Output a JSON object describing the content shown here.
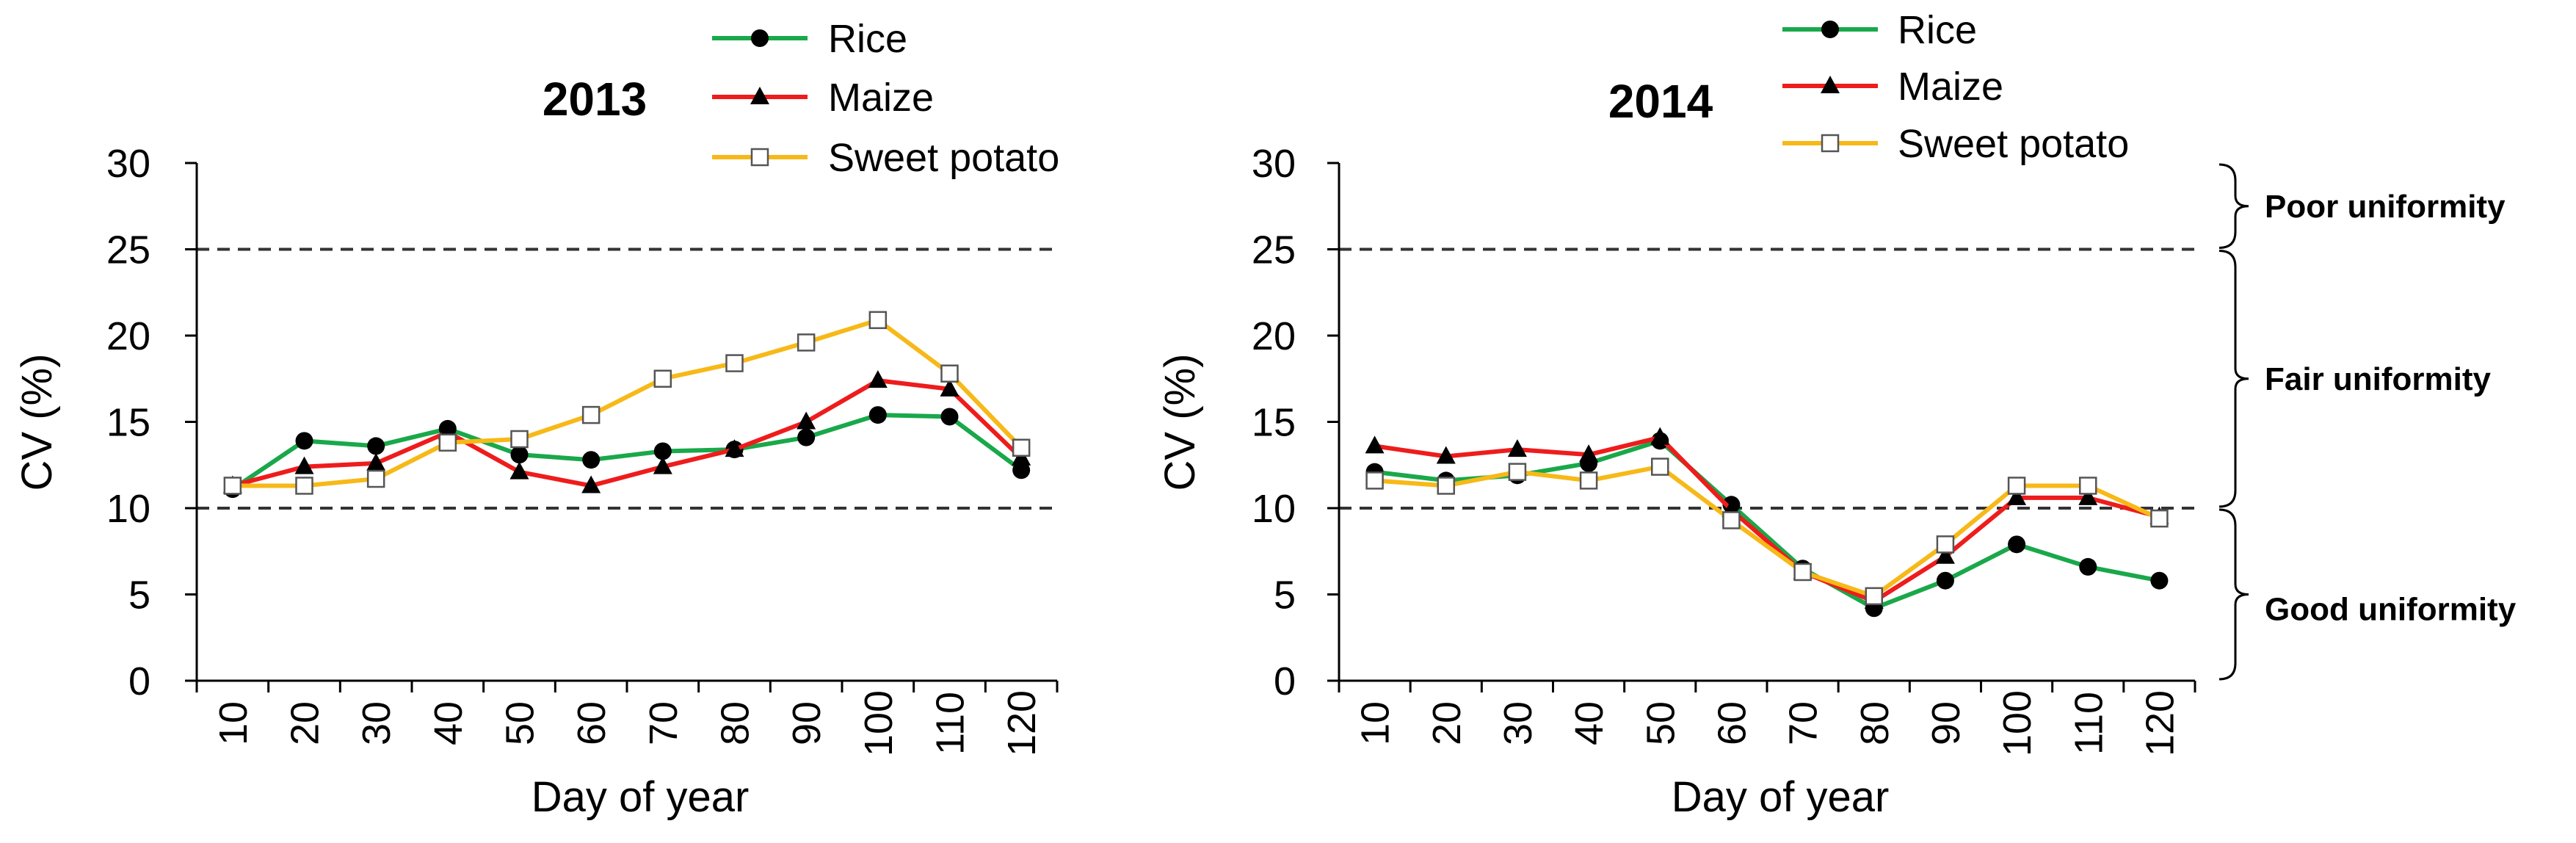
{
  "chart_data": [
    {
      "type": "line",
      "title": "2013",
      "xlabel": "Day of year",
      "ylabel": "CV (%)",
      "x": [
        10,
        20,
        30,
        40,
        50,
        60,
        70,
        80,
        90,
        100,
        110,
        120
      ],
      "x_tick_labels": [
        "10",
        "20",
        "30",
        "40",
        "50",
        "60",
        "70",
        "80",
        "90",
        "100",
        "110",
        "120"
      ],
      "y_ticks": [
        0,
        5,
        10,
        15,
        20,
        25,
        30
      ],
      "y_tick_labels": [
        "0",
        "5",
        "10",
        "15",
        "20",
        "25",
        "30"
      ],
      "ylim": [
        0,
        30
      ],
      "reference_lines": [
        10,
        25
      ],
      "legend_position": "top-right",
      "series": [
        {
          "name": "Rice",
          "color": "#19a84a",
          "marker": "circle",
          "values": [
            11.1,
            13.9,
            13.6,
            14.6,
            13.1,
            12.8,
            13.3,
            13.4,
            14.1,
            15.4,
            15.3,
            12.2
          ]
        },
        {
          "name": "Maize",
          "color": "#ee1c1c",
          "marker": "triangle",
          "values": [
            11.3,
            12.4,
            12.6,
            14.4,
            12.1,
            11.3,
            12.4,
            13.4,
            15.0,
            17.4,
            16.9,
            12.9
          ]
        },
        {
          "name": "Sweet potato",
          "color": "#f7b918",
          "marker": "open-square",
          "values": [
            11.3,
            11.3,
            11.7,
            13.8,
            14.0,
            15.4,
            17.5,
            18.4,
            19.6,
            20.9,
            17.8,
            13.5
          ]
        }
      ]
    },
    {
      "type": "line",
      "title": "2014",
      "xlabel": "Day of year",
      "ylabel": "CV (%)",
      "x": [
        10,
        20,
        30,
        40,
        50,
        60,
        70,
        80,
        90,
        100,
        110,
        120
      ],
      "x_tick_labels": [
        "10",
        "20",
        "30",
        "40",
        "50",
        "60",
        "70",
        "80",
        "90",
        "100",
        "110",
        "120"
      ],
      "y_ticks": [
        0,
        5,
        10,
        15,
        20,
        25,
        30
      ],
      "y_tick_labels": [
        "0",
        "5",
        "10",
        "15",
        "20",
        "25",
        "30"
      ],
      "ylim": [
        0,
        30
      ],
      "reference_lines": [
        10,
        25
      ],
      "legend_position": "top-right",
      "series": [
        {
          "name": "Rice",
          "color": "#19a84a",
          "marker": "circle",
          "values": [
            12.1,
            11.6,
            11.9,
            12.6,
            13.9,
            10.2,
            6.5,
            4.2,
            5.8,
            7.9,
            6.6,
            5.8
          ]
        },
        {
          "name": "Maize",
          "color": "#ee1c1c",
          "marker": "triangle",
          "values": [
            13.6,
            13.0,
            13.4,
            13.1,
            14.1,
            9.9,
            6.3,
            4.6,
            7.2,
            10.6,
            10.6,
            9.5
          ]
        },
        {
          "name": "Sweet potato",
          "color": "#f7b918",
          "marker": "open-square",
          "values": [
            11.6,
            11.3,
            12.1,
            11.6,
            12.4,
            9.3,
            6.3,
            4.9,
            7.9,
            11.3,
            11.3,
            9.4
          ]
        }
      ],
      "annotations": [
        {
          "label": "Poor uniformity",
          "range": [
            25,
            30
          ]
        },
        {
          "label": "Fair uniformity",
          "range": [
            10,
            25
          ]
        },
        {
          "label": "Good uniformity",
          "range": [
            0,
            10
          ]
        }
      ]
    }
  ]
}
